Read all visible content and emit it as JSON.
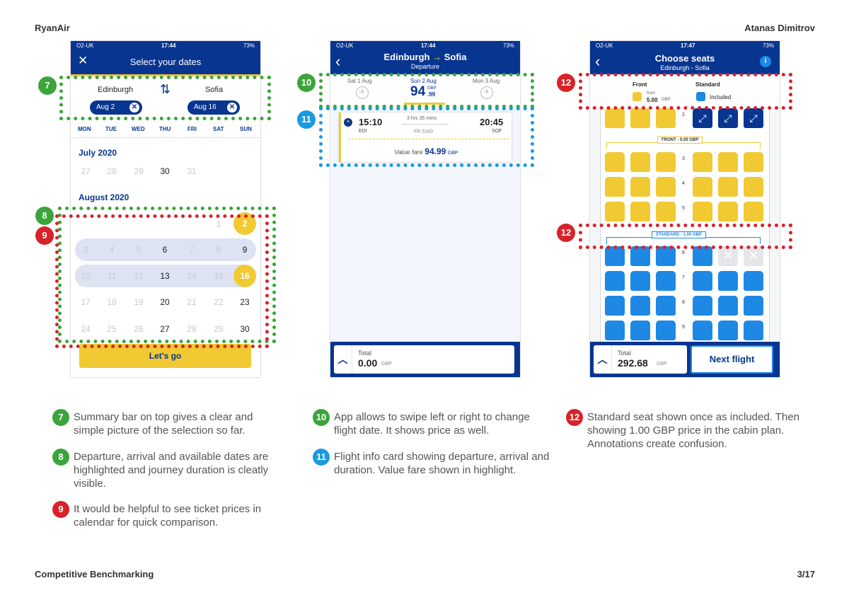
{
  "page": {
    "header_left": "RyanAir",
    "header_right": "Atanas Dimitrov",
    "footer_left": "Competitive Benchmarking",
    "footer_right": "3/17"
  },
  "colors": {
    "brand_blue": "#073590",
    "accent_yellow": "#f1c933",
    "seat_blue": "#1e88e5",
    "green": "#3ba43b",
    "red": "#d8222a",
    "blue_annotation": "#1a9ae0"
  },
  "screen1": {
    "status": {
      "carrier": "O2-UK",
      "time": "17:44",
      "battery": "73%"
    },
    "title": "Select your dates",
    "from_city": "Edinburgh",
    "to_city": "Sofia",
    "depart_pill": "Aug 2",
    "return_pill": "Aug 16",
    "weekdays": [
      "MON",
      "TUE",
      "WED",
      "THU",
      "FRI",
      "SAT",
      "SUN"
    ],
    "month1": "July 2020",
    "july_days": [
      "27",
      "28",
      "29",
      "30",
      "31"
    ],
    "month2": "August 2020",
    "aug_row1": [
      "1",
      "2"
    ],
    "aug_row2": [
      "3",
      "4",
      "5",
      "6",
      "7",
      "8",
      "9"
    ],
    "aug_row3": [
      "10",
      "11",
      "12",
      "13",
      "14",
      "15",
      "16"
    ],
    "aug_row4": [
      "17",
      "18",
      "19",
      "20",
      "21",
      "22",
      "23"
    ],
    "aug_row5": [
      "24",
      "25",
      "26",
      "27",
      "28",
      "29",
      "30"
    ],
    "cta": "Let's go"
  },
  "screen2": {
    "status": {
      "carrier": "O2-UK",
      "time": "17:44",
      "battery": "73%"
    },
    "title_from": "Edinburgh",
    "title_to": "Sofia",
    "subtitle": "Departure",
    "prev_date": "Sat 1 Aug",
    "cur_date": "Sun 2 Aug",
    "cur_price_main": "94",
    "cur_price_currency": "GBP",
    "cur_price_cents": ".99",
    "next_date": "Mon 3 Aug",
    "dep_time": "15:10",
    "duration": "3 hrs 35 mins",
    "arr_time": "20:45",
    "dep_code": "EDI",
    "flight_no": "FR 5160",
    "arr_code": "SOF",
    "fare_label": "Value fare",
    "fare_price": "94.99",
    "fare_currency": "GBP",
    "total_label": "Total",
    "total_value": "0.00",
    "total_currency": "GBP"
  },
  "screen3": {
    "status": {
      "carrier": "O2-UK",
      "time": "17:47",
      "battery": "73%"
    },
    "title": "Choose seats",
    "subtitle": "Edinburgh - Sofia",
    "legend_front": "Front",
    "legend_from": "from",
    "legend_front_price": "5.00",
    "legend_front_currency": "GBP",
    "legend_standard": "Standard",
    "legend_included": "Included",
    "zone_front": "FRONT - 5.00 GBP",
    "zone_standard": "STANDARD - 1.00 GBP",
    "rows": [
      "2",
      "3",
      "4",
      "5",
      "6",
      "7",
      "8",
      "9"
    ],
    "total_label": "Total",
    "total_value": "292.68",
    "total_currency": "GBP",
    "next_button": "Next flight"
  },
  "annotations": {
    "b7": "7",
    "b8": "8",
    "b9": "9",
    "b10": "10",
    "b11": "11",
    "b12": "12",
    "n7": "Summary bar on top gives a clear and simple picture of the selection so far.",
    "n8": "Departure, arrival and available dates are highlighted and journey duration is cleatly visible.",
    "n9": "It would be helpful to see ticket prices in calendar for quick comparison.",
    "n10": "App allows to swipe left or right to change flight date. It shows price as well.",
    "n11": "Flight info card showing departure, arrival and duration. Value fare shown in highlight.",
    "n12": "Standard seat shown once as included. Then showing 1.00 GBP price in the cabin plan. Annotations create confusion."
  }
}
